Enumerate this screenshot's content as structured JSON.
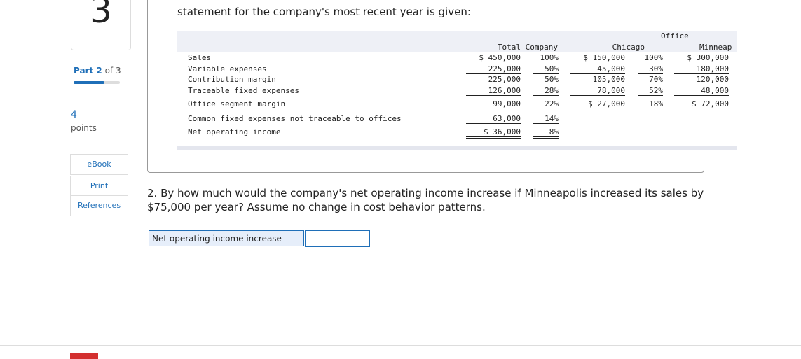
{
  "sidebar": {
    "question_number": "3",
    "part": "Part 2",
    "part_of": "of 3",
    "points": "4",
    "points_label": "points",
    "buttons": [
      "eBook",
      "Print",
      "References"
    ]
  },
  "intro": "statement for the company's most recent year is given:",
  "table": {
    "group_header": "Office",
    "columns": [
      "Total Company",
      "Chicago",
      "Minneap"
    ],
    "rows": [
      {
        "label": "Sales",
        "cells": [
          "$ 450,000",
          "100%",
          "$ 150,000",
          "100%",
          "$ 300,000"
        ]
      },
      {
        "label": "Variable expenses",
        "cells": [
          "225,000",
          "50%",
          "45,000",
          "30%",
          "180,000"
        ]
      },
      {
        "label": "Contribution margin",
        "cells": [
          "225,000",
          "50%",
          "105,000",
          "70%",
          "120,000"
        ]
      },
      {
        "label": "Traceable fixed expenses",
        "cells": [
          "126,000",
          "28%",
          "78,000",
          "52%",
          "48,000"
        ]
      },
      {
        "label": "Office segment margin",
        "cells": [
          "99,000",
          "22%",
          "$ 27,000",
          "18%",
          "$ 72,000"
        ]
      },
      {
        "label": "Common fixed expenses not traceable to offices",
        "cells": [
          "63,000",
          "14%"
        ]
      },
      {
        "label": "Net operating income",
        "cells": [
          "$ 36,000",
          "8%"
        ]
      }
    ]
  },
  "question": "2. By how much would the company's net operating income increase if Minneapolis increased its sales by $75,000 per year? Assume no change in cost behavior patterns.",
  "answer_label": "Net operating income increase"
}
